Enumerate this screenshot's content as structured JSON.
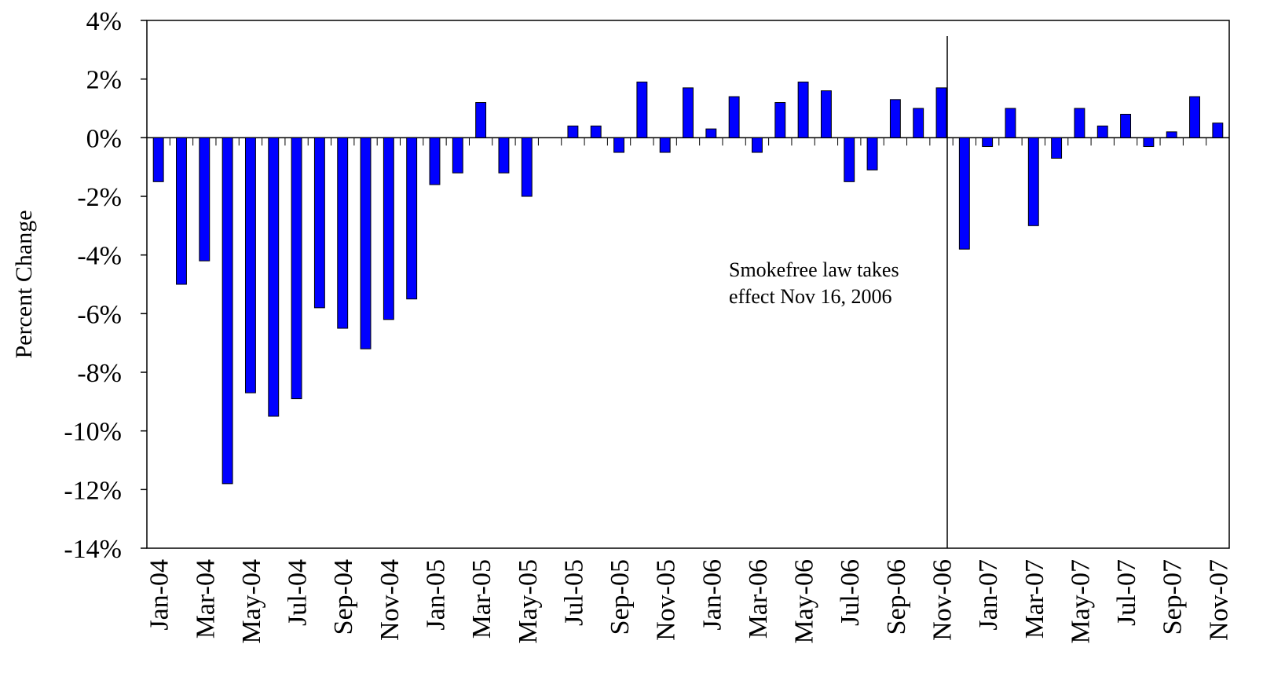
{
  "chart_data": {
    "type": "bar",
    "y_label": "Percent Change",
    "annotation": "Smokefree law takes effect Nov 16, 2006",
    "categories": [
      "Jan-04",
      null,
      "Mar-04",
      null,
      "May-04",
      null,
      "Jul-04",
      null,
      "Sep-04",
      null,
      "Nov-04",
      null,
      "Jan-05",
      null,
      "Mar-05",
      null,
      "May-05",
      null,
      "Jul-05",
      null,
      "Sep-05",
      null,
      "Nov-05",
      null,
      "Jan-06",
      null,
      "Mar-06",
      null,
      "May-06",
      null,
      "Jul-06",
      null,
      "Sep-06",
      null,
      "Nov-06",
      null,
      "Jan-07",
      null,
      "Mar-07",
      null,
      "May-07",
      null,
      "Jul-07",
      null,
      "Sep-07",
      null,
      "Nov-07"
    ],
    "values": [
      -1.5,
      -5.0,
      -4.2,
      -11.8,
      -8.7,
      -9.5,
      -8.9,
      -5.8,
      -6.5,
      -7.2,
      -6.2,
      -5.5,
      -1.6,
      -1.2,
      1.2,
      -1.2,
      -2.0,
      0,
      0.4,
      0.4,
      -0.5,
      1.9,
      -0.5,
      1.7,
      0.3,
      1.4,
      -0.5,
      1.2,
      1.9,
      1.6,
      -1.5,
      -1.1,
      1.3,
      1.0,
      1.7,
      -3.8,
      -0.3,
      1.0,
      -3.0,
      -0.7,
      1.0,
      0.4,
      0.8,
      -0.3,
      0.2,
      1.4,
      0.5
    ],
    "color": "#0000ff",
    "ylim": [
      -14,
      4
    ],
    "yticks": [
      {
        "value": 4,
        "label": "4%"
      },
      {
        "value": 2,
        "label": "2%"
      },
      {
        "value": 0,
        "label": "0%"
      },
      {
        "value": -2,
        "label": "-2%"
      },
      {
        "value": -4,
        "label": "-4%"
      },
      {
        "value": -6,
        "label": "-6%"
      },
      {
        "value": -8,
        "label": "-8%"
      },
      {
        "value": -10,
        "label": "-10%"
      },
      {
        "value": -12,
        "label": "-12%"
      },
      {
        "value": -14,
        "label": "-14%"
      }
    ]
  }
}
